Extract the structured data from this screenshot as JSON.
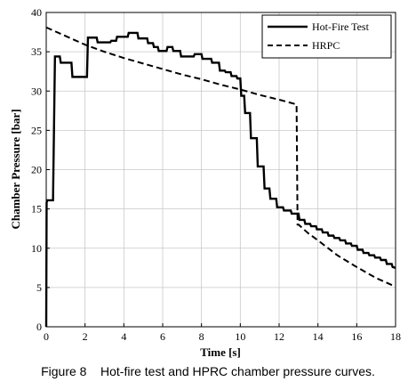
{
  "caption": "Figure 8    Hot-fire test and HPRC chamber pressure curves.",
  "chart_data": {
    "type": "line",
    "xlabel": "Time [s]",
    "ylabel": "Chamber Pressure [bar]",
    "xlim": [
      0,
      18
    ],
    "ylim": [
      0,
      40
    ],
    "xticks": [
      0,
      2,
      4,
      6,
      8,
      10,
      12,
      14,
      16,
      18
    ],
    "yticks": [
      0,
      5,
      10,
      15,
      20,
      25,
      30,
      35,
      40
    ],
    "grid": true,
    "legend_position": "top-right",
    "series": [
      {
        "name": "Hot-Fire Test",
        "style": "solid",
        "color": "#000000",
        "x": [
          0.0,
          0.02,
          0.05,
          0.35,
          0.45,
          0.7,
          0.75,
          1.3,
          1.35,
          2.1,
          2.15,
          2.6,
          2.65,
          3.3,
          3.35,
          3.6,
          3.65,
          4.2,
          4.25,
          4.7,
          4.75,
          5.2,
          5.25,
          5.5,
          5.55,
          5.75,
          5.8,
          6.2,
          6.25,
          6.5,
          6.55,
          6.9,
          6.95,
          7.6,
          7.65,
          8.0,
          8.05,
          8.5,
          8.55,
          8.9,
          8.95,
          9.2,
          9.25,
          9.5,
          9.55,
          9.8,
          9.85,
          10.0,
          10.05,
          10.2,
          10.25,
          10.5,
          10.55,
          10.85,
          10.9,
          11.2,
          11.25,
          11.5,
          11.55,
          11.85,
          11.9,
          12.2,
          12.25,
          12.6,
          12.65,
          13.0,
          13.05,
          13.3,
          13.35,
          13.6,
          13.65,
          13.9,
          13.95,
          14.2,
          14.25,
          14.5,
          14.55,
          14.8,
          14.85,
          15.1,
          15.15,
          15.4,
          15.45,
          15.7,
          15.75,
          16.0,
          16.05,
          16.3,
          16.35,
          16.6,
          16.65,
          16.9,
          16.95,
          17.2,
          17.25,
          17.5,
          17.55,
          17.8,
          17.85,
          18.0
        ],
        "y": [
          0.0,
          15.8,
          16.1,
          16.1,
          34.4,
          34.4,
          33.6,
          33.6,
          31.8,
          31.8,
          36.8,
          36.8,
          36.2,
          36.2,
          36.4,
          36.4,
          36.9,
          36.9,
          37.4,
          37.4,
          36.7,
          36.7,
          36.1,
          36.1,
          35.6,
          35.6,
          35.1,
          35.1,
          35.6,
          35.6,
          35.1,
          35.1,
          34.4,
          34.4,
          34.7,
          34.7,
          34.1,
          34.1,
          33.6,
          33.6,
          32.6,
          32.6,
          32.4,
          32.4,
          31.9,
          31.9,
          31.6,
          31.6,
          29.4,
          29.4,
          27.2,
          27.2,
          24.0,
          24.0,
          20.4,
          20.4,
          17.6,
          17.6,
          16.3,
          16.3,
          15.2,
          15.2,
          14.8,
          14.8,
          14.4,
          14.4,
          13.6,
          13.6,
          13.1,
          13.1,
          12.8,
          12.8,
          12.4,
          12.4,
          12.0,
          12.0,
          11.6,
          11.6,
          11.3,
          11.3,
          11.0,
          11.0,
          10.6,
          10.6,
          10.3,
          10.3,
          9.8,
          9.8,
          9.4,
          9.4,
          9.1,
          9.1,
          8.8,
          8.8,
          8.5,
          8.5,
          8.0,
          8.0,
          7.6,
          7.5
        ]
      },
      {
        "name": "HRPC",
        "style": "dashed",
        "color": "#000000",
        "x": [
          0,
          1,
          2,
          3,
          4,
          5,
          6,
          7,
          8,
          9,
          10,
          11,
          12,
          12.9,
          12.95,
          13.0,
          13.5,
          14,
          15,
          16,
          17,
          18
        ],
        "y": [
          38.1,
          37.0,
          35.9,
          35.0,
          34.2,
          33.5,
          32.8,
          32.1,
          31.5,
          30.8,
          30.2,
          29.5,
          28.9,
          28.3,
          13.0,
          13.0,
          11.9,
          11.0,
          9.1,
          7.6,
          6.2,
          5.1
        ]
      }
    ]
  }
}
